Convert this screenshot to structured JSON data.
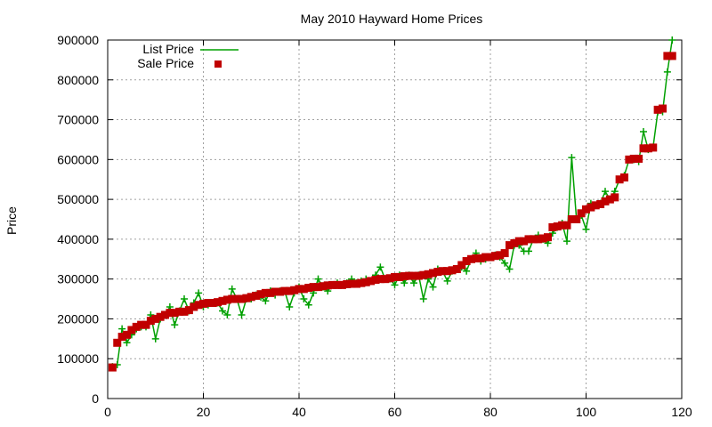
{
  "chart_data": {
    "type": "line",
    "title": "May 2010 Hayward Home Prices",
    "xlabel": "",
    "ylabel": "Price",
    "xlim": [
      0,
      120
    ],
    "ylim": [
      0,
      900000
    ],
    "xticks": [
      0,
      20,
      40,
      60,
      80,
      100,
      120
    ],
    "yticks": [
      0,
      100000,
      200000,
      300000,
      400000,
      500000,
      600000,
      700000,
      800000,
      900000
    ],
    "grid": true,
    "legend_position": "top-left",
    "x": [
      1,
      2,
      3,
      4,
      5,
      6,
      7,
      8,
      9,
      10,
      11,
      12,
      13,
      14,
      15,
      16,
      17,
      18,
      19,
      20,
      21,
      22,
      23,
      24,
      25,
      26,
      27,
      28,
      29,
      30,
      31,
      32,
      33,
      34,
      35,
      36,
      37,
      38,
      39,
      40,
      41,
      42,
      43,
      44,
      45,
      46,
      47,
      48,
      49,
      50,
      51,
      52,
      53,
      54,
      55,
      56,
      57,
      58,
      59,
      60,
      61,
      62,
      63,
      64,
      65,
      66,
      67,
      68,
      69,
      70,
      71,
      72,
      73,
      74,
      75,
      76,
      77,
      78,
      79,
      80,
      81,
      82,
      83,
      84,
      85,
      86,
      87,
      88,
      89,
      90,
      91,
      92,
      93,
      94,
      95,
      96,
      97,
      98,
      99,
      100,
      101,
      102,
      103,
      104,
      105,
      106,
      107,
      108,
      109,
      110,
      111,
      112,
      113,
      114,
      115,
      116,
      117,
      118
    ],
    "series": [
      {
        "name": "List Price",
        "style": "line-cross",
        "color": "#00a000",
        "values": [
          80000,
          85000,
          175000,
          140000,
          160000,
          175000,
          180000,
          180000,
          210000,
          150000,
          200000,
          210000,
          230000,
          185000,
          220000,
          250000,
          220000,
          240000,
          265000,
          230000,
          235000,
          240000,
          240000,
          220000,
          210000,
          275000,
          250000,
          210000,
          250000,
          250000,
          260000,
          255000,
          245000,
          270000,
          260000,
          270000,
          270000,
          230000,
          265000,
          280000,
          250000,
          235000,
          265000,
          300000,
          280000,
          270000,
          285000,
          290000,
          285000,
          290000,
          300000,
          290000,
          295000,
          300000,
          295000,
          310000,
          330000,
          300000,
          300000,
          285000,
          310000,
          290000,
          310000,
          290000,
          310000,
          250000,
          300000,
          280000,
          325000,
          320000,
          295000,
          320000,
          325000,
          330000,
          320000,
          350000,
          365000,
          345000,
          350000,
          355000,
          360000,
          355000,
          340000,
          325000,
          385000,
          385000,
          370000,
          370000,
          400000,
          410000,
          400000,
          390000,
          415000,
          430000,
          440000,
          395000,
          605000,
          450000,
          460000,
          425000,
          490000,
          485000,
          490000,
          520000,
          500000,
          520000,
          550000,
          560000,
          600000,
          600000,
          595000,
          670000,
          625000,
          630000,
          720000,
          720000,
          820000,
          900000
        ]
      },
      {
        "name": "Sale Price",
        "style": "square-points",
        "color": "#c00000",
        "values": [
          78000,
          140000,
          155000,
          160000,
          172000,
          180000,
          185000,
          185000,
          195000,
          200000,
          205000,
          210000,
          215000,
          215000,
          218000,
          218000,
          222000,
          230000,
          235000,
          238000,
          240000,
          240000,
          242000,
          245000,
          248000,
          250000,
          250000,
          250000,
          252000,
          255000,
          258000,
          262000,
          265000,
          265000,
          268000,
          268000,
          270000,
          270000,
          272000,
          275000,
          275000,
          278000,
          280000,
          280000,
          282000,
          284000,
          285000,
          285000,
          285000,
          287000,
          288000,
          288000,
          290000,
          292000,
          295000,
          298000,
          300000,
          300000,
          302000,
          305000,
          305000,
          307000,
          308000,
          308000,
          308000,
          310000,
          312000,
          315000,
          318000,
          320000,
          320000,
          322000,
          325000,
          335000,
          345000,
          350000,
          352000,
          352000,
          355000,
          355000,
          358000,
          360000,
          365000,
          385000,
          390000,
          395000,
          395000,
          400000,
          400000,
          400000,
          402000,
          405000,
          430000,
          432000,
          435000,
          435000,
          450000,
          450000,
          465000,
          475000,
          480000,
          485000,
          488000,
          495000,
          500000,
          505000,
          550000,
          555000,
          600000,
          602000,
          602000,
          628000,
          628000,
          630000,
          725000,
          728000,
          860000,
          860000
        ]
      }
    ]
  }
}
